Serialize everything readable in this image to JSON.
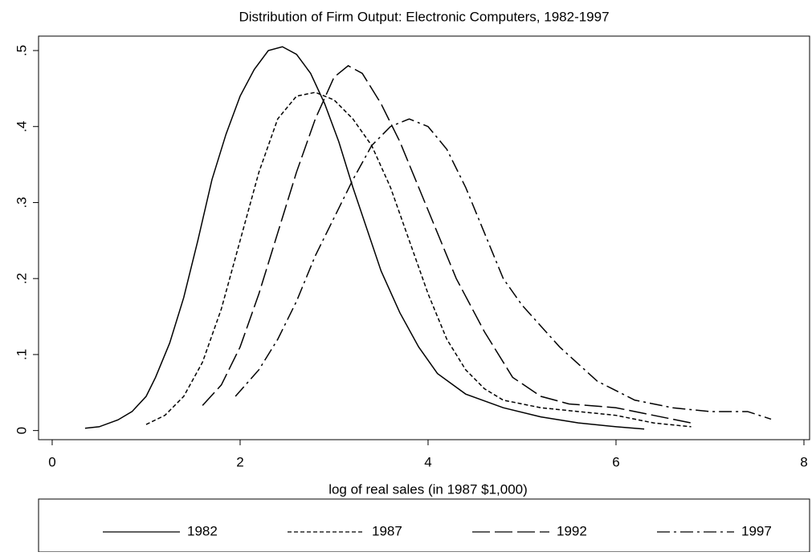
{
  "chart_data": {
    "type": "line",
    "title": "Distribution of Firm Output: Electronic Computers, 1982-1997",
    "xlabel": "log of real sales (in 1987 $1,000)",
    "xlim": [
      -0.145,
      8.06
    ],
    "ylim": [
      -0.012,
      0.519
    ],
    "xticks": [
      0,
      2,
      4,
      6,
      8
    ],
    "yticks": [
      0,
      {
        "value": 0.1,
        "label": ".1"
      },
      {
        "value": 0.2,
        "label": ".2"
      },
      {
        "value": 0.3,
        "label": ".3"
      },
      {
        "value": 0.4,
        "label": ".4"
      },
      {
        "value": 0.5,
        "label": ".5"
      }
    ],
    "color": "#000000",
    "series": [
      {
        "name": "1982",
        "linestyle": "solid",
        "x": [
          0.35,
          0.5,
          0.7,
          0.85,
          1.0,
          1.1,
          1.25,
          1.4,
          1.55,
          1.7,
          1.85,
          2.0,
          2.15,
          2.3,
          2.45,
          2.6,
          2.75,
          2.9,
          3.05,
          3.2,
          3.35,
          3.5,
          3.7,
          3.9,
          4.1,
          4.4,
          4.8,
          5.2,
          5.6,
          6.0,
          6.3
        ],
        "values": [
          0.003,
          0.005,
          0.014,
          0.025,
          0.045,
          0.07,
          0.115,
          0.175,
          0.25,
          0.33,
          0.39,
          0.44,
          0.475,
          0.5,
          0.505,
          0.495,
          0.47,
          0.43,
          0.38,
          0.32,
          0.265,
          0.21,
          0.155,
          0.11,
          0.075,
          0.048,
          0.03,
          0.018,
          0.01,
          0.005,
          0.002
        ]
      },
      {
        "name": "1987",
        "linestyle": "dashed",
        "x": [
          1.0,
          1.2,
          1.4,
          1.6,
          1.8,
          2.0,
          2.2,
          2.4,
          2.6,
          2.8,
          3.0,
          3.2,
          3.4,
          3.6,
          3.8,
          4.0,
          4.2,
          4.4,
          4.6,
          4.8,
          5.2,
          5.6,
          6.0,
          6.4,
          6.8
        ],
        "values": [
          0.008,
          0.02,
          0.045,
          0.09,
          0.16,
          0.25,
          0.34,
          0.41,
          0.44,
          0.445,
          0.435,
          0.41,
          0.375,
          0.32,
          0.25,
          0.18,
          0.12,
          0.08,
          0.055,
          0.04,
          0.03,
          0.025,
          0.02,
          0.01,
          0.005
        ]
      },
      {
        "name": "1992",
        "linestyle": "longdash",
        "x": [
          1.6,
          1.8,
          2.0,
          2.2,
          2.4,
          2.6,
          2.8,
          3.0,
          3.15,
          3.3,
          3.5,
          3.7,
          3.9,
          4.1,
          4.3,
          4.6,
          4.9,
          5.2,
          5.5,
          6.0,
          6.4,
          6.8
        ],
        "values": [
          0.033,
          0.06,
          0.11,
          0.18,
          0.26,
          0.34,
          0.41,
          0.465,
          0.48,
          0.47,
          0.43,
          0.38,
          0.32,
          0.26,
          0.2,
          0.13,
          0.07,
          0.045,
          0.035,
          0.03,
          0.02,
          0.01
        ]
      },
      {
        "name": "1997",
        "linestyle": "dashdot",
        "x": [
          1.95,
          2.2,
          2.4,
          2.6,
          2.8,
          3.0,
          3.2,
          3.4,
          3.6,
          3.8,
          4.0,
          4.2,
          4.4,
          4.6,
          4.8,
          5.0,
          5.4,
          5.8,
          6.2,
          6.6,
          7.0,
          7.4,
          7.65
        ],
        "values": [
          0.045,
          0.08,
          0.12,
          0.17,
          0.23,
          0.28,
          0.33,
          0.375,
          0.4,
          0.41,
          0.4,
          0.37,
          0.32,
          0.26,
          0.2,
          0.165,
          0.11,
          0.065,
          0.04,
          0.03,
          0.025,
          0.025,
          0.015
        ]
      }
    ]
  }
}
